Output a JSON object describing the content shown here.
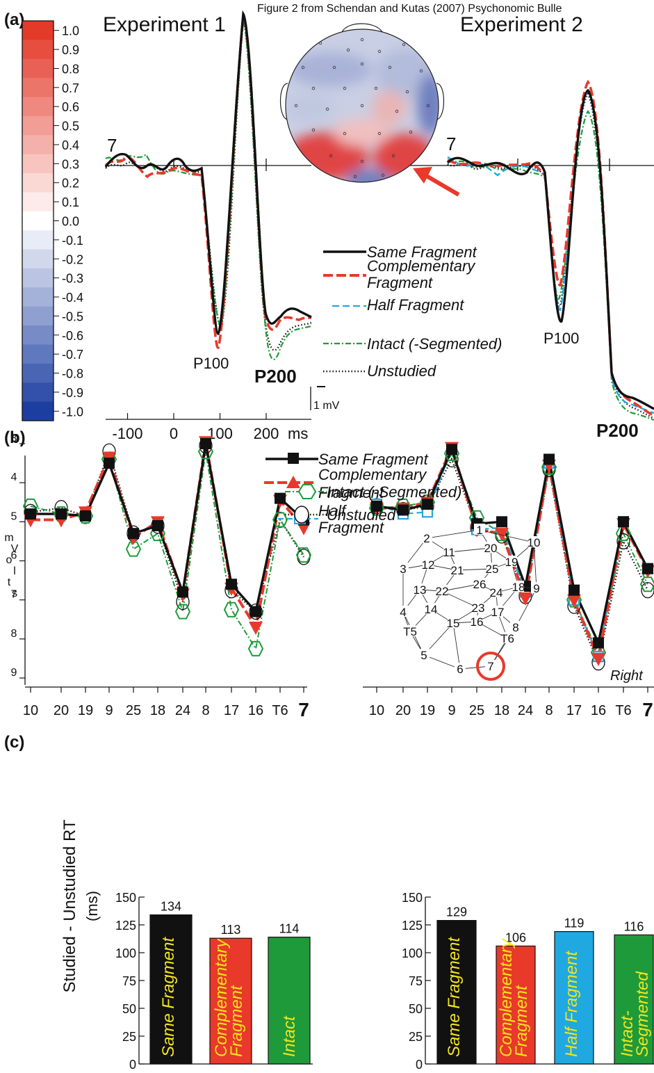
{
  "header": "Figure 2 from Schendan and Kutas (2007) Psychonomic Bulle",
  "panel_labels": {
    "a": "(a)",
    "b": "(b)",
    "c": "(c)"
  },
  "colors": {
    "same": "#111111",
    "complementary": "#e8392b",
    "half": "#20a8e0",
    "intact": "#1e9a3a",
    "unstudied": "#111111",
    "bar_label": "#f2e51c",
    "arrow": "#e8392b"
  },
  "panel_a": {
    "experiment1_title": "Experiment 1",
    "experiment2_title": "Experiment 2",
    "electrode_label": "7",
    "colorbar": {
      "ticks": [
        "1.0",
        "0.9",
        "0.8",
        "0.7",
        "0.6",
        "0.5",
        "0.4",
        "0.3",
        "0.2",
        "0.1",
        "0.0",
        "-0.1",
        "-0.2",
        "-0.3",
        "-0.4",
        "-0.5",
        "-0.6",
        "-0.7",
        "-0.8",
        "-0.9",
        "-1.0"
      ],
      "max": 1.0,
      "min": -1.0
    },
    "peak_labels": {
      "p100": "P100",
      "p200": "P200"
    },
    "scale_label": "1 mV",
    "x_ticks": [
      "-100",
      "0",
      "100",
      "200"
    ],
    "x_unit": "ms",
    "legend": [
      {
        "key": "same",
        "label": "Same Fragment"
      },
      {
        "key": "complementary",
        "label": "Complementary Fragment"
      },
      {
        "key": "half",
        "label": "Half Fragment"
      },
      {
        "key": "intact",
        "label": "Intact (-Segmented)"
      },
      {
        "key": "unstudied",
        "label": "Unstudied"
      }
    ]
  },
  "panel_b": {
    "y_label": "mVolts",
    "y_ticks": [
      "3",
      "4",
      "5",
      "6",
      "7",
      "8",
      "9"
    ],
    "right_label": "Right",
    "legend_top": [
      {
        "key": "same",
        "label": "Same Fragment"
      },
      {
        "key": "complementary",
        "label": "Complementary Fragment"
      },
      {
        "key": "half",
        "label": "Half Fragment"
      }
    ],
    "legend_bottom": [
      {
        "key": "intact",
        "label": "Intact (-Segmented)"
      },
      {
        "key": "unstudied",
        "label": "Unstudied"
      }
    ],
    "montage_labels": [
      "1",
      "2",
      "3",
      "4",
      "5",
      "6",
      "7",
      "8",
      "9",
      "10",
      "11",
      "12",
      "13",
      "14",
      "15",
      "16",
      "17",
      "18",
      "19",
      "20",
      "21",
      "22",
      "23",
      "24",
      "25",
      "26",
      "T5",
      "T6"
    ]
  },
  "panel_c": {
    "y_label_line1": "Studied - Unstudied RT",
    "y_label_line2": "(ms)",
    "y_ticks": [
      "0",
      "25",
      "50",
      "75",
      "100",
      "125",
      "150"
    ]
  },
  "chart_data": [
    {
      "type": "line",
      "title": "Experiment 1",
      "xlabel": "ms",
      "x": [
        -100,
        0,
        100,
        200
      ],
      "xlim": [
        -130,
        280
      ],
      "series_names": [
        "Same Fragment",
        "Complementary Fragment",
        "Intact (-Segmented)",
        "Unstudied"
      ],
      "annotations": [
        "7",
        "P100",
        "P200",
        "1 mV"
      ]
    },
    {
      "type": "line",
      "title": "Experiment 2",
      "series_names": [
        "Same Fragment",
        "Complementary Fragment",
        "Half Fragment",
        "Intact (-Segmented)",
        "Unstudied"
      ],
      "annotations": [
        "7",
        "P100",
        "P200"
      ]
    },
    {
      "type": "line",
      "ylabel": "mVolts",
      "ylim": [
        3,
        9
      ],
      "categories": [
        "10",
        "20",
        "19",
        "9",
        "25",
        "18",
        "24",
        "8",
        "17",
        "16",
        "T6",
        "7"
      ],
      "series": [
        {
          "key": "same",
          "name": "Same Fragment",
          "values": [
            4.8,
            4.8,
            4.85,
            3.5,
            5.3,
            5.1,
            6.8,
            3.0,
            6.6,
            7.3,
            4.4,
            4.95
          ]
        },
        {
          "key": "complementary",
          "name": "Complementary Fragment",
          "values": [
            4.95,
            4.95,
            4.75,
            3.35,
            5.4,
            5.0,
            6.85,
            2.95,
            6.7,
            7.7,
            4.45,
            5.15
          ]
        },
        {
          "key": "intact",
          "name": "Intact (-Segmented)",
          "values": [
            4.6,
            4.8,
            4.85,
            3.4,
            5.7,
            5.3,
            7.3,
            3.2,
            7.25,
            8.25,
            4.95,
            5.85
          ]
        },
        {
          "key": "unstudied",
          "name": "Unstudied",
          "values": [
            4.75,
            4.65,
            4.85,
            3.2,
            5.3,
            5.1,
            7.05,
            3.05,
            6.75,
            7.3,
            4.95,
            5.9
          ]
        }
      ]
    },
    {
      "type": "line",
      "ylabel": "mVolts",
      "ylim": [
        3,
        9
      ],
      "categories": [
        "10",
        "20",
        "19",
        "9",
        "25",
        "18",
        "24",
        "8",
        "17",
        "16",
        "T6",
        "7"
      ],
      "series": [
        {
          "key": "same",
          "name": "Same Fragment",
          "values": [
            4.6,
            4.7,
            4.55,
            3.15,
            5.05,
            5.0,
            6.65,
            3.4,
            6.75,
            8.1,
            5.0,
            6.2
          ]
        },
        {
          "key": "complementary",
          "name": "Complementary Fragment",
          "values": [
            4.65,
            4.65,
            4.5,
            3.1,
            5.2,
            5.3,
            6.95,
            3.55,
            7.0,
            8.5,
            5.05,
            6.25
          ]
        },
        {
          "key": "half",
          "name": "Half Fragment",
          "values": [
            4.55,
            4.8,
            4.75,
            3.15,
            5.2,
            5.15,
            6.8,
            3.5,
            7.0,
            8.45,
            5.0,
            6.2
          ]
        },
        {
          "key": "intact",
          "name": "Intact (-Segmented)",
          "values": [
            4.65,
            4.6,
            4.5,
            3.25,
            4.9,
            5.3,
            6.7,
            3.6,
            7.0,
            8.35,
            5.3,
            6.6
          ]
        },
        {
          "key": "unstudied",
          "name": "Unstudied",
          "values": [
            4.6,
            4.7,
            4.6,
            3.4,
            5.15,
            5.35,
            6.9,
            3.65,
            7.15,
            8.6,
            5.5,
            6.75
          ]
        }
      ]
    },
    {
      "type": "bar",
      "ylabel": "Studied - Unstudied RT (ms)",
      "ylim": [
        0,
        150
      ],
      "categories": [
        "Same Fragment",
        "Complementary Fragment",
        "Intact"
      ],
      "values": [
        134,
        113,
        114
      ],
      "keys": [
        "same",
        "complementary",
        "intact"
      ]
    },
    {
      "type": "bar",
      "ylim": [
        0,
        150
      ],
      "categories": [
        "Same Fragment",
        "Complementary Fragment",
        "Half Fragment",
        "Intact-Segmented"
      ],
      "values": [
        129,
        106,
        119,
        116
      ],
      "keys": [
        "same",
        "complementary",
        "half",
        "intact"
      ]
    }
  ]
}
